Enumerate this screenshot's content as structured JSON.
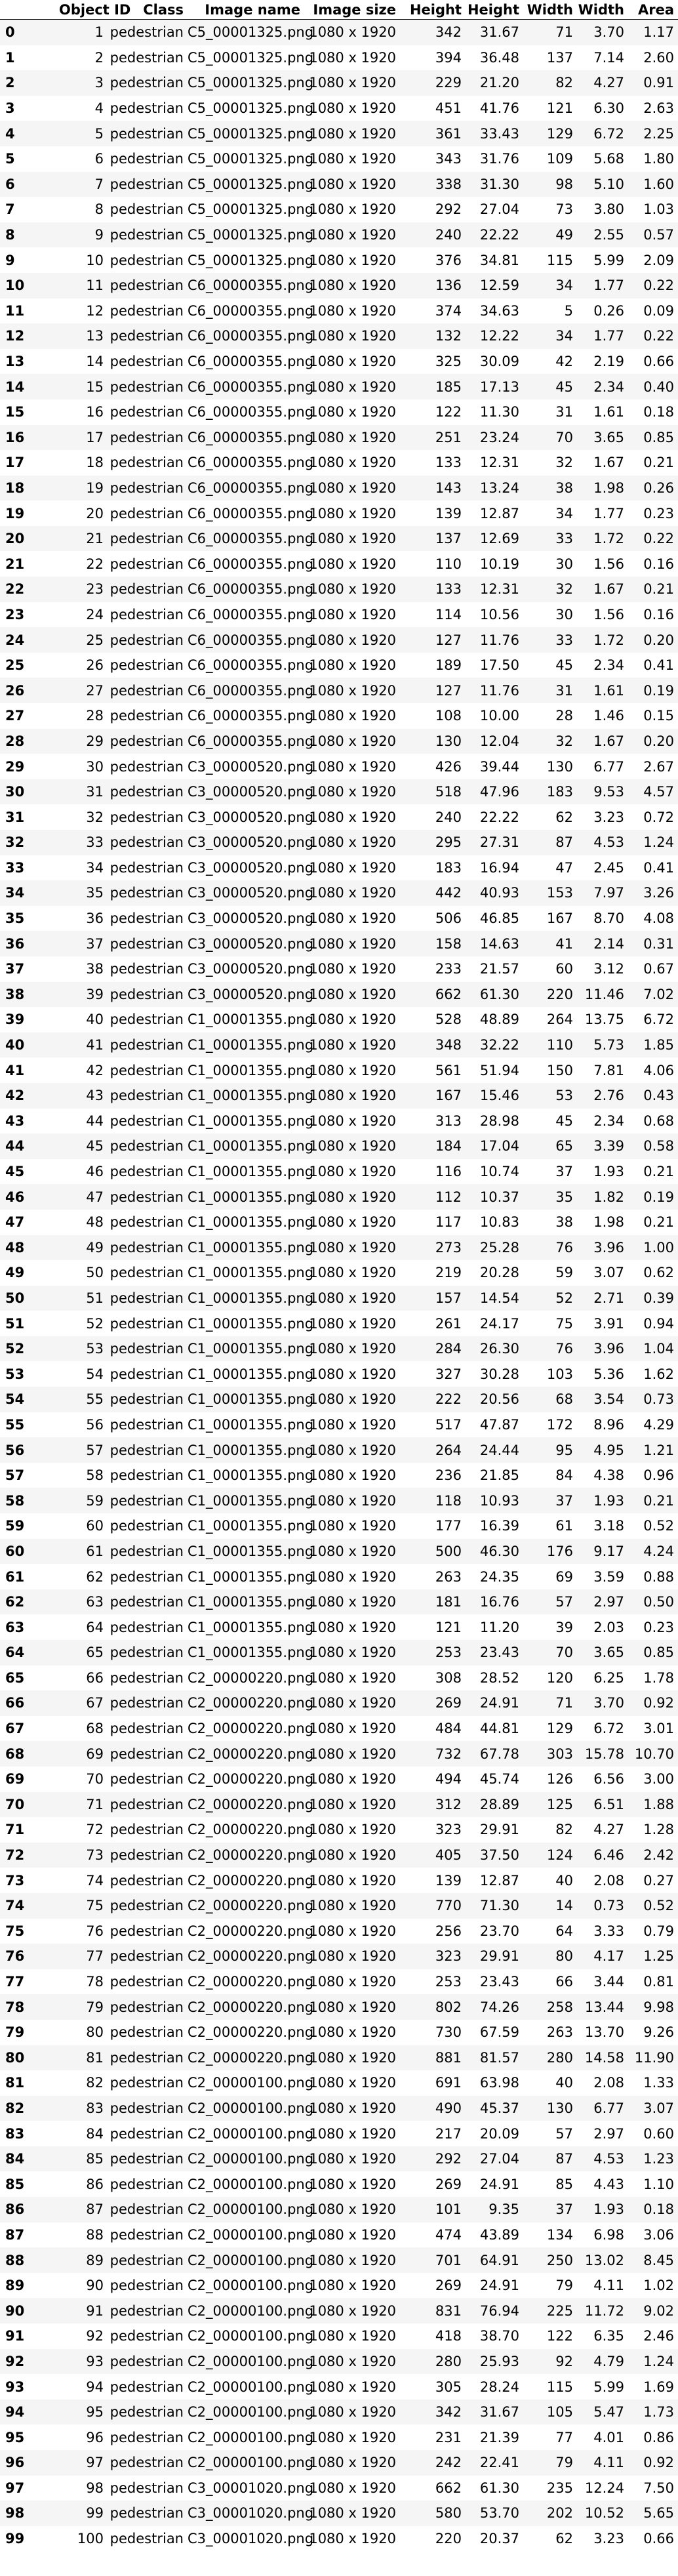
{
  "columns": [
    "",
    "Object ID",
    "Class",
    "Image name",
    "Image size",
    "Height",
    "Height",
    "Width",
    "Width",
    "Area"
  ],
  "rows": [
    [
      "0",
      "1",
      "pedestrian",
      "C5_00001325.png",
      "1080 x 1920",
      "342",
      "31.67",
      "71",
      "3.70",
      "1.17"
    ],
    [
      "1",
      "2",
      "pedestrian",
      "C5_00001325.png",
      "1080 x 1920",
      "394",
      "36.48",
      "137",
      "7.14",
      "2.60"
    ],
    [
      "2",
      "3",
      "pedestrian",
      "C5_00001325.png",
      "1080 x 1920",
      "229",
      "21.20",
      "82",
      "4.27",
      "0.91"
    ],
    [
      "3",
      "4",
      "pedestrian",
      "C5_00001325.png",
      "1080 x 1920",
      "451",
      "41.76",
      "121",
      "6.30",
      "2.63"
    ],
    [
      "4",
      "5",
      "pedestrian",
      "C5_00001325.png",
      "1080 x 1920",
      "361",
      "33.43",
      "129",
      "6.72",
      "2.25"
    ],
    [
      "5",
      "6",
      "pedestrian",
      "C5_00001325.png",
      "1080 x 1920",
      "343",
      "31.76",
      "109",
      "5.68",
      "1.80"
    ],
    [
      "6",
      "7",
      "pedestrian",
      "C5_00001325.png",
      "1080 x 1920",
      "338",
      "31.30",
      "98",
      "5.10",
      "1.60"
    ],
    [
      "7",
      "8",
      "pedestrian",
      "C5_00001325.png",
      "1080 x 1920",
      "292",
      "27.04",
      "73",
      "3.80",
      "1.03"
    ],
    [
      "8",
      "9",
      "pedestrian",
      "C5_00001325.png",
      "1080 x 1920",
      "240",
      "22.22",
      "49",
      "2.55",
      "0.57"
    ],
    [
      "9",
      "10",
      "pedestrian",
      "C5_00001325.png",
      "1080 x 1920",
      "376",
      "34.81",
      "115",
      "5.99",
      "2.09"
    ],
    [
      "10",
      "11",
      "pedestrian",
      "C6_00000355.png",
      "1080 x 1920",
      "136",
      "12.59",
      "34",
      "1.77",
      "0.22"
    ],
    [
      "11",
      "12",
      "pedestrian",
      "C6_00000355.png",
      "1080 x 1920",
      "374",
      "34.63",
      "5",
      "0.26",
      "0.09"
    ],
    [
      "12",
      "13",
      "pedestrian",
      "C6_00000355.png",
      "1080 x 1920",
      "132",
      "12.22",
      "34",
      "1.77",
      "0.22"
    ],
    [
      "13",
      "14",
      "pedestrian",
      "C6_00000355.png",
      "1080 x 1920",
      "325",
      "30.09",
      "42",
      "2.19",
      "0.66"
    ],
    [
      "14",
      "15",
      "pedestrian",
      "C6_00000355.png",
      "1080 x 1920",
      "185",
      "17.13",
      "45",
      "2.34",
      "0.40"
    ],
    [
      "15",
      "16",
      "pedestrian",
      "C6_00000355.png",
      "1080 x 1920",
      "122",
      "11.30",
      "31",
      "1.61",
      "0.18"
    ],
    [
      "16",
      "17",
      "pedestrian",
      "C6_00000355.png",
      "1080 x 1920",
      "251",
      "23.24",
      "70",
      "3.65",
      "0.85"
    ],
    [
      "17",
      "18",
      "pedestrian",
      "C6_00000355.png",
      "1080 x 1920",
      "133",
      "12.31",
      "32",
      "1.67",
      "0.21"
    ],
    [
      "18",
      "19",
      "pedestrian",
      "C6_00000355.png",
      "1080 x 1920",
      "143",
      "13.24",
      "38",
      "1.98",
      "0.26"
    ],
    [
      "19",
      "20",
      "pedestrian",
      "C6_00000355.png",
      "1080 x 1920",
      "139",
      "12.87",
      "34",
      "1.77",
      "0.23"
    ],
    [
      "20",
      "21",
      "pedestrian",
      "C6_00000355.png",
      "1080 x 1920",
      "137",
      "12.69",
      "33",
      "1.72",
      "0.22"
    ],
    [
      "21",
      "22",
      "pedestrian",
      "C6_00000355.png",
      "1080 x 1920",
      "110",
      "10.19",
      "30",
      "1.56",
      "0.16"
    ],
    [
      "22",
      "23",
      "pedestrian",
      "C6_00000355.png",
      "1080 x 1920",
      "133",
      "12.31",
      "32",
      "1.67",
      "0.21"
    ],
    [
      "23",
      "24",
      "pedestrian",
      "C6_00000355.png",
      "1080 x 1920",
      "114",
      "10.56",
      "30",
      "1.56",
      "0.16"
    ],
    [
      "24",
      "25",
      "pedestrian",
      "C6_00000355.png",
      "1080 x 1920",
      "127",
      "11.76",
      "33",
      "1.72",
      "0.20"
    ],
    [
      "25",
      "26",
      "pedestrian",
      "C6_00000355.png",
      "1080 x 1920",
      "189",
      "17.50",
      "45",
      "2.34",
      "0.41"
    ],
    [
      "26",
      "27",
      "pedestrian",
      "C6_00000355.png",
      "1080 x 1920",
      "127",
      "11.76",
      "31",
      "1.61",
      "0.19"
    ],
    [
      "27",
      "28",
      "pedestrian",
      "C6_00000355.png",
      "1080 x 1920",
      "108",
      "10.00",
      "28",
      "1.46",
      "0.15"
    ],
    [
      "28",
      "29",
      "pedestrian",
      "C6_00000355.png",
      "1080 x 1920",
      "130",
      "12.04",
      "32",
      "1.67",
      "0.20"
    ],
    [
      "29",
      "30",
      "pedestrian",
      "C3_00000520.png",
      "1080 x 1920",
      "426",
      "39.44",
      "130",
      "6.77",
      "2.67"
    ],
    [
      "30",
      "31",
      "pedestrian",
      "C3_00000520.png",
      "1080 x 1920",
      "518",
      "47.96",
      "183",
      "9.53",
      "4.57"
    ],
    [
      "31",
      "32",
      "pedestrian",
      "C3_00000520.png",
      "1080 x 1920",
      "240",
      "22.22",
      "62",
      "3.23",
      "0.72"
    ],
    [
      "32",
      "33",
      "pedestrian",
      "C3_00000520.png",
      "1080 x 1920",
      "295",
      "27.31",
      "87",
      "4.53",
      "1.24"
    ],
    [
      "33",
      "34",
      "pedestrian",
      "C3_00000520.png",
      "1080 x 1920",
      "183",
      "16.94",
      "47",
      "2.45",
      "0.41"
    ],
    [
      "34",
      "35",
      "pedestrian",
      "C3_00000520.png",
      "1080 x 1920",
      "442",
      "40.93",
      "153",
      "7.97",
      "3.26"
    ],
    [
      "35",
      "36",
      "pedestrian",
      "C3_00000520.png",
      "1080 x 1920",
      "506",
      "46.85",
      "167",
      "8.70",
      "4.08"
    ],
    [
      "36",
      "37",
      "pedestrian",
      "C3_00000520.png",
      "1080 x 1920",
      "158",
      "14.63",
      "41",
      "2.14",
      "0.31"
    ],
    [
      "37",
      "38",
      "pedestrian",
      "C3_00000520.png",
      "1080 x 1920",
      "233",
      "21.57",
      "60",
      "3.12",
      "0.67"
    ],
    [
      "38",
      "39",
      "pedestrian",
      "C3_00000520.png",
      "1080 x 1920",
      "662",
      "61.30",
      "220",
      "11.46",
      "7.02"
    ],
    [
      "39",
      "40",
      "pedestrian",
      "C1_00001355.png",
      "1080 x 1920",
      "528",
      "48.89",
      "264",
      "13.75",
      "6.72"
    ],
    [
      "40",
      "41",
      "pedestrian",
      "C1_00001355.png",
      "1080 x 1920",
      "348",
      "32.22",
      "110",
      "5.73",
      "1.85"
    ],
    [
      "41",
      "42",
      "pedestrian",
      "C1_00001355.png",
      "1080 x 1920",
      "561",
      "51.94",
      "150",
      "7.81",
      "4.06"
    ],
    [
      "42",
      "43",
      "pedestrian",
      "C1_00001355.png",
      "1080 x 1920",
      "167",
      "15.46",
      "53",
      "2.76",
      "0.43"
    ],
    [
      "43",
      "44",
      "pedestrian",
      "C1_00001355.png",
      "1080 x 1920",
      "313",
      "28.98",
      "45",
      "2.34",
      "0.68"
    ],
    [
      "44",
      "45",
      "pedestrian",
      "C1_00001355.png",
      "1080 x 1920",
      "184",
      "17.04",
      "65",
      "3.39",
      "0.58"
    ],
    [
      "45",
      "46",
      "pedestrian",
      "C1_00001355.png",
      "1080 x 1920",
      "116",
      "10.74",
      "37",
      "1.93",
      "0.21"
    ],
    [
      "46",
      "47",
      "pedestrian",
      "C1_00001355.png",
      "1080 x 1920",
      "112",
      "10.37",
      "35",
      "1.82",
      "0.19"
    ],
    [
      "47",
      "48",
      "pedestrian",
      "C1_00001355.png",
      "1080 x 1920",
      "117",
      "10.83",
      "38",
      "1.98",
      "0.21"
    ],
    [
      "48",
      "49",
      "pedestrian",
      "C1_00001355.png",
      "1080 x 1920",
      "273",
      "25.28",
      "76",
      "3.96",
      "1.00"
    ],
    [
      "49",
      "50",
      "pedestrian",
      "C1_00001355.png",
      "1080 x 1920",
      "219",
      "20.28",
      "59",
      "3.07",
      "0.62"
    ],
    [
      "50",
      "51",
      "pedestrian",
      "C1_00001355.png",
      "1080 x 1920",
      "157",
      "14.54",
      "52",
      "2.71",
      "0.39"
    ],
    [
      "51",
      "52",
      "pedestrian",
      "C1_00001355.png",
      "1080 x 1920",
      "261",
      "24.17",
      "75",
      "3.91",
      "0.94"
    ],
    [
      "52",
      "53",
      "pedestrian",
      "C1_00001355.png",
      "1080 x 1920",
      "284",
      "26.30",
      "76",
      "3.96",
      "1.04"
    ],
    [
      "53",
      "54",
      "pedestrian",
      "C1_00001355.png",
      "1080 x 1920",
      "327",
      "30.28",
      "103",
      "5.36",
      "1.62"
    ],
    [
      "54",
      "55",
      "pedestrian",
      "C1_00001355.png",
      "1080 x 1920",
      "222",
      "20.56",
      "68",
      "3.54",
      "0.73"
    ],
    [
      "55",
      "56",
      "pedestrian",
      "C1_00001355.png",
      "1080 x 1920",
      "517",
      "47.87",
      "172",
      "8.96",
      "4.29"
    ],
    [
      "56",
      "57",
      "pedestrian",
      "C1_00001355.png",
      "1080 x 1920",
      "264",
      "24.44",
      "95",
      "4.95",
      "1.21"
    ],
    [
      "57",
      "58",
      "pedestrian",
      "C1_00001355.png",
      "1080 x 1920",
      "236",
      "21.85",
      "84",
      "4.38",
      "0.96"
    ],
    [
      "58",
      "59",
      "pedestrian",
      "C1_00001355.png",
      "1080 x 1920",
      "118",
      "10.93",
      "37",
      "1.93",
      "0.21"
    ],
    [
      "59",
      "60",
      "pedestrian",
      "C1_00001355.png",
      "1080 x 1920",
      "177",
      "16.39",
      "61",
      "3.18",
      "0.52"
    ],
    [
      "60",
      "61",
      "pedestrian",
      "C1_00001355.png",
      "1080 x 1920",
      "500",
      "46.30",
      "176",
      "9.17",
      "4.24"
    ],
    [
      "61",
      "62",
      "pedestrian",
      "C1_00001355.png",
      "1080 x 1920",
      "263",
      "24.35",
      "69",
      "3.59",
      "0.88"
    ],
    [
      "62",
      "63",
      "pedestrian",
      "C1_00001355.png",
      "1080 x 1920",
      "181",
      "16.76",
      "57",
      "2.97",
      "0.50"
    ],
    [
      "63",
      "64",
      "pedestrian",
      "C1_00001355.png",
      "1080 x 1920",
      "121",
      "11.20",
      "39",
      "2.03",
      "0.23"
    ],
    [
      "64",
      "65",
      "pedestrian",
      "C1_00001355.png",
      "1080 x 1920",
      "253",
      "23.43",
      "70",
      "3.65",
      "0.85"
    ],
    [
      "65",
      "66",
      "pedestrian",
      "C2_00000220.png",
      "1080 x 1920",
      "308",
      "28.52",
      "120",
      "6.25",
      "1.78"
    ],
    [
      "66",
      "67",
      "pedestrian",
      "C2_00000220.png",
      "1080 x 1920",
      "269",
      "24.91",
      "71",
      "3.70",
      "0.92"
    ],
    [
      "67",
      "68",
      "pedestrian",
      "C2_00000220.png",
      "1080 x 1920",
      "484",
      "44.81",
      "129",
      "6.72",
      "3.01"
    ],
    [
      "68",
      "69",
      "pedestrian",
      "C2_00000220.png",
      "1080 x 1920",
      "732",
      "67.78",
      "303",
      "15.78",
      "10.70"
    ],
    [
      "69",
      "70",
      "pedestrian",
      "C2_00000220.png",
      "1080 x 1920",
      "494",
      "45.74",
      "126",
      "6.56",
      "3.00"
    ],
    [
      "70",
      "71",
      "pedestrian",
      "C2_00000220.png",
      "1080 x 1920",
      "312",
      "28.89",
      "125",
      "6.51",
      "1.88"
    ],
    [
      "71",
      "72",
      "pedestrian",
      "C2_00000220.png",
      "1080 x 1920",
      "323",
      "29.91",
      "82",
      "4.27",
      "1.28"
    ],
    [
      "72",
      "73",
      "pedestrian",
      "C2_00000220.png",
      "1080 x 1920",
      "405",
      "37.50",
      "124",
      "6.46",
      "2.42"
    ],
    [
      "73",
      "74",
      "pedestrian",
      "C2_00000220.png",
      "1080 x 1920",
      "139",
      "12.87",
      "40",
      "2.08",
      "0.27"
    ],
    [
      "74",
      "75",
      "pedestrian",
      "C2_00000220.png",
      "1080 x 1920",
      "770",
      "71.30",
      "14",
      "0.73",
      "0.52"
    ],
    [
      "75",
      "76",
      "pedestrian",
      "C2_00000220.png",
      "1080 x 1920",
      "256",
      "23.70",
      "64",
      "3.33",
      "0.79"
    ],
    [
      "76",
      "77",
      "pedestrian",
      "C2_00000220.png",
      "1080 x 1920",
      "323",
      "29.91",
      "80",
      "4.17",
      "1.25"
    ],
    [
      "77",
      "78",
      "pedestrian",
      "C2_00000220.png",
      "1080 x 1920",
      "253",
      "23.43",
      "66",
      "3.44",
      "0.81"
    ],
    [
      "78",
      "79",
      "pedestrian",
      "C2_00000220.png",
      "1080 x 1920",
      "802",
      "74.26",
      "258",
      "13.44",
      "9.98"
    ],
    [
      "79",
      "80",
      "pedestrian",
      "C2_00000220.png",
      "1080 x 1920",
      "730",
      "67.59",
      "263",
      "13.70",
      "9.26"
    ],
    [
      "80",
      "81",
      "pedestrian",
      "C2_00000220.png",
      "1080 x 1920",
      "881",
      "81.57",
      "280",
      "14.58",
      "11.90"
    ],
    [
      "81",
      "82",
      "pedestrian",
      "C2_00000100.png",
      "1080 x 1920",
      "691",
      "63.98",
      "40",
      "2.08",
      "1.33"
    ],
    [
      "82",
      "83",
      "pedestrian",
      "C2_00000100.png",
      "1080 x 1920",
      "490",
      "45.37",
      "130",
      "6.77",
      "3.07"
    ],
    [
      "83",
      "84",
      "pedestrian",
      "C2_00000100.png",
      "1080 x 1920",
      "217",
      "20.09",
      "57",
      "2.97",
      "0.60"
    ],
    [
      "84",
      "85",
      "pedestrian",
      "C2_00000100.png",
      "1080 x 1920",
      "292",
      "27.04",
      "87",
      "4.53",
      "1.23"
    ],
    [
      "85",
      "86",
      "pedestrian",
      "C2_00000100.png",
      "1080 x 1920",
      "269",
      "24.91",
      "85",
      "4.43",
      "1.10"
    ],
    [
      "86",
      "87",
      "pedestrian",
      "C2_00000100.png",
      "1080 x 1920",
      "101",
      "9.35",
      "37",
      "1.93",
      "0.18"
    ],
    [
      "87",
      "88",
      "pedestrian",
      "C2_00000100.png",
      "1080 x 1920",
      "474",
      "43.89",
      "134",
      "6.98",
      "3.06"
    ],
    [
      "88",
      "89",
      "pedestrian",
      "C2_00000100.png",
      "1080 x 1920",
      "701",
      "64.91",
      "250",
      "13.02",
      "8.45"
    ],
    [
      "89",
      "90",
      "pedestrian",
      "C2_00000100.png",
      "1080 x 1920",
      "269",
      "24.91",
      "79",
      "4.11",
      "1.02"
    ],
    [
      "90",
      "91",
      "pedestrian",
      "C2_00000100.png",
      "1080 x 1920",
      "831",
      "76.94",
      "225",
      "11.72",
      "9.02"
    ],
    [
      "91",
      "92",
      "pedestrian",
      "C2_00000100.png",
      "1080 x 1920",
      "418",
      "38.70",
      "122",
      "6.35",
      "2.46"
    ],
    [
      "92",
      "93",
      "pedestrian",
      "C2_00000100.png",
      "1080 x 1920",
      "280",
      "25.93",
      "92",
      "4.79",
      "1.24"
    ],
    [
      "93",
      "94",
      "pedestrian",
      "C2_00000100.png",
      "1080 x 1920",
      "305",
      "28.24",
      "115",
      "5.99",
      "1.69"
    ],
    [
      "94",
      "95",
      "pedestrian",
      "C2_00000100.png",
      "1080 x 1920",
      "342",
      "31.67",
      "105",
      "5.47",
      "1.73"
    ],
    [
      "95",
      "96",
      "pedestrian",
      "C2_00000100.png",
      "1080 x 1920",
      "231",
      "21.39",
      "77",
      "4.01",
      "0.86"
    ],
    [
      "96",
      "97",
      "pedestrian",
      "C2_00000100.png",
      "1080 x 1920",
      "242",
      "22.41",
      "79",
      "4.11",
      "0.92"
    ],
    [
      "97",
      "98",
      "pedestrian",
      "C3_00001020.png",
      "1080 x 1920",
      "662",
      "61.30",
      "235",
      "12.24",
      "7.50"
    ],
    [
      "98",
      "99",
      "pedestrian",
      "C3_00001020.png",
      "1080 x 1920",
      "580",
      "53.70",
      "202",
      "10.52",
      "5.65"
    ],
    [
      "99",
      "100",
      "pedestrian",
      "C3_00001020.png",
      "1080 x 1920",
      "220",
      "20.37",
      "62",
      "3.23",
      "0.66"
    ]
  ]
}
